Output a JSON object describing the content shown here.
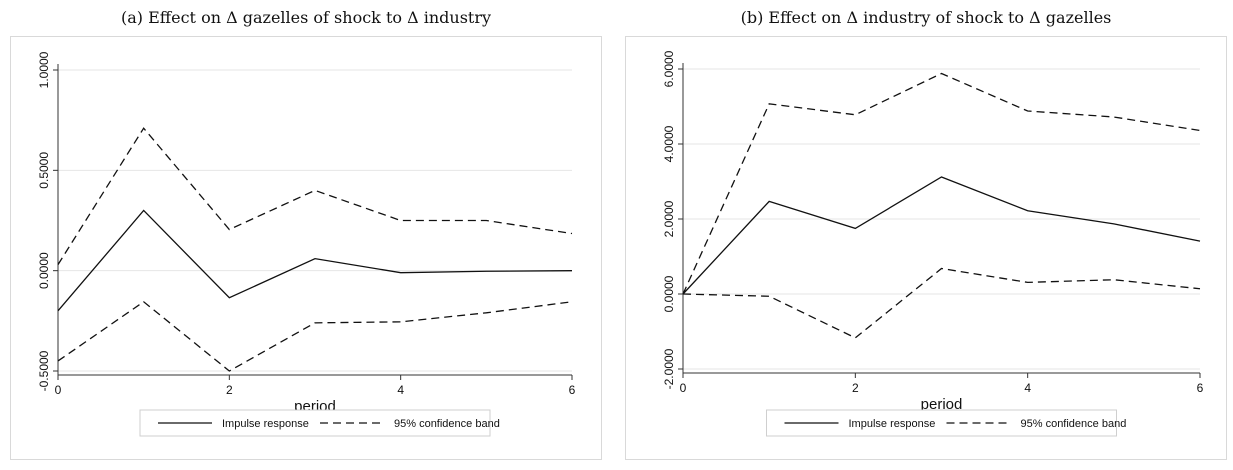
{
  "chart_data": [
    {
      "type": "line",
      "title": "(a) Effect on Δ gazelles of shock to Δ industry",
      "xlabel": "period",
      "ylabel": "",
      "x": [
        0,
        1,
        2,
        3,
        4,
        5,
        6
      ],
      "xticks": [
        0,
        2,
        4,
        6
      ],
      "xtick_labels": [
        "0",
        "2",
        "4",
        "6"
      ],
      "xlim": [
        0,
        6
      ],
      "yticks": [
        -0.5,
        0,
        0.5,
        1
      ],
      "ytick_labels": [
        "-0.5000",
        "0.0000",
        "0.5000",
        "1.0000"
      ],
      "ylim": [
        -0.5,
        1.0
      ],
      "grid": true,
      "legend_position": "bottom",
      "series": [
        {
          "name": "Impulse response",
          "style": "solid",
          "values": [
            -0.2,
            0.3,
            -0.135,
            0.06,
            -0.01,
            -0.003,
            0.0
          ]
        },
        {
          "name": "95% confidence band",
          "style": "dashed",
          "values": [
            0.03,
            0.71,
            0.205,
            0.4,
            0.25,
            0.25,
            0.185
          ]
        },
        {
          "name": "",
          "style": "dashed",
          "values": [
            -0.45,
            -0.155,
            -0.5,
            -0.26,
            -0.255,
            -0.21,
            -0.155
          ]
        }
      ],
      "legend": [
        "Impulse response",
        "95% confidence band"
      ]
    },
    {
      "type": "line",
      "title": "(b) Effect on Δ industry of shock to Δ gazelles",
      "xlabel": "period",
      "ylabel": "",
      "x": [
        0,
        1,
        2,
        3,
        4,
        5,
        6
      ],
      "xticks": [
        0,
        2,
        4,
        6
      ],
      "xtick_labels": [
        "0",
        "2",
        "4",
        "6"
      ],
      "xlim": [
        0,
        6
      ],
      "yticks": [
        -2,
        0,
        2,
        4,
        6
      ],
      "ytick_labels": [
        "-2.0000",
        "0.0000",
        "2.0000",
        "4.0000",
        "6.0000"
      ],
      "ylim": [
        -2.0,
        6.0
      ],
      "grid": true,
      "legend_position": "bottom",
      "series": [
        {
          "name": "Impulse response",
          "style": "solid",
          "values": [
            0.0,
            2.47,
            1.75,
            3.12,
            2.22,
            1.87,
            1.41
          ]
        },
        {
          "name": "95% confidence band",
          "style": "dashed",
          "values": [
            0.0,
            5.07,
            4.78,
            5.88,
            4.88,
            4.72,
            4.36
          ]
        },
        {
          "name": "",
          "style": "dashed",
          "values": [
            0.0,
            -0.06,
            -1.17,
            0.68,
            0.31,
            0.38,
            0.14
          ]
        }
      ],
      "legend": [
        "Impulse response",
        "95% confidence band"
      ]
    }
  ]
}
